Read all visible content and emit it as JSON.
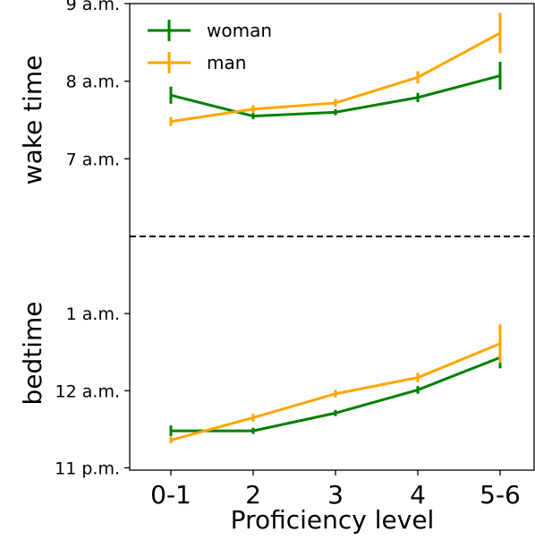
{
  "chart_data": {
    "type": "line",
    "xlabel": "Proficiency level",
    "categories": [
      "0-1",
      "2",
      "3",
      "4",
      "5-6"
    ],
    "legend": {
      "placement": "top-left",
      "entries": [
        "woman",
        "man"
      ]
    },
    "divider": {
      "style": "dashed",
      "color": "#000000"
    },
    "panels": [
      {
        "id": "wake",
        "ylabel": "wake time",
        "yunit": "hours (clock time)",
        "ylim": [
          6.0,
          9.0
        ],
        "yticks": [
          {
            "value": 9,
            "label": "9 a.m."
          },
          {
            "value": 8,
            "label": "8 a.m."
          },
          {
            "value": 7,
            "label": "7 a.m."
          }
        ],
        "series": [
          {
            "name": "woman",
            "color": "#008000",
            "values": [
              7.82,
              7.55,
              7.6,
              7.79,
              8.07
            ],
            "errors": [
              0.11,
              0.04,
              0.04,
              0.06,
              0.18
            ]
          },
          {
            "name": "man",
            "color": "#FFA500",
            "values": [
              7.48,
              7.64,
              7.72,
              8.05,
              8.62
            ],
            "errors": [
              0.06,
              0.05,
              0.05,
              0.08,
              0.26
            ]
          }
        ]
      },
      {
        "id": "bed",
        "ylabel": "bedtime",
        "yunit": "hours (clock time, 24 = midnight)",
        "ylim": [
          22.97,
          26.0
        ],
        "yticks": [
          {
            "value": 25,
            "label": "1 a.m."
          },
          {
            "value": 24,
            "label": "12 a.m."
          },
          {
            "value": 23,
            "label": "11 p.m."
          }
        ],
        "series": [
          {
            "name": "woman",
            "color": "#008000",
            "values": [
              23.48,
              23.48,
              23.71,
              24.01,
              24.43
            ],
            "errors": [
              0.07,
              0.04,
              0.04,
              0.05,
              0.14
            ]
          },
          {
            "name": "man",
            "color": "#FFA500",
            "values": [
              23.36,
              23.65,
              23.96,
              24.17,
              24.61
            ],
            "errors": [
              0.04,
              0.05,
              0.05,
              0.06,
              0.25
            ]
          }
        ]
      }
    ]
  }
}
